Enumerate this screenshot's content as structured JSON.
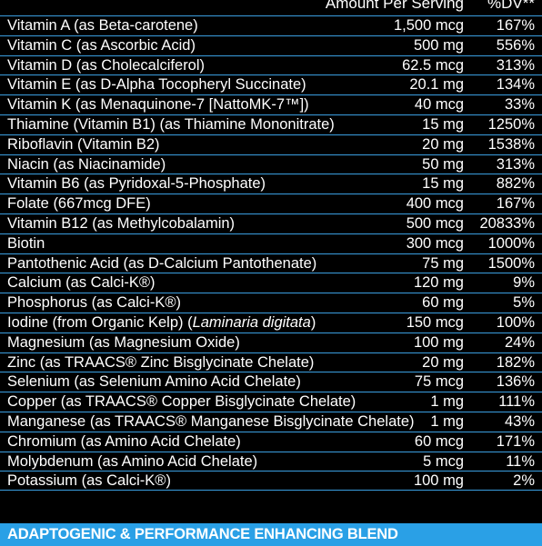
{
  "header": {
    "amount_label": "Amount Per Serving",
    "dv_label": "%DV**"
  },
  "rows": [
    {
      "name": "Vitamin A (as Beta-carotene)",
      "amount": "1,500 mcg",
      "dv": "167%"
    },
    {
      "name": "Vitamin C (as Ascorbic Acid)",
      "amount": "500 mg",
      "dv": "556%"
    },
    {
      "name": "Vitamin D (as Cholecalciferol)",
      "amount": "62.5 mcg",
      "dv": "313%"
    },
    {
      "name": "Vitamin E (as D-Alpha Tocopheryl Succinate)",
      "amount": "20.1 mg",
      "dv": "134%"
    },
    {
      "name": "Vitamin K (as Menaquinone-7 [NattoMK-7™])",
      "amount": "40 mcg",
      "dv": "33%"
    },
    {
      "name": "Thiamine (Vitamin B1) (as Thiamine Mononitrate)",
      "amount": "15 mg",
      "dv": "1250%"
    },
    {
      "name": "Riboflavin (Vitamin B2)",
      "amount": "20 mg",
      "dv": "1538%"
    },
    {
      "name": "Niacin (as Niacinamide)",
      "amount": "50 mg",
      "dv": "313%"
    },
    {
      "name": "Vitamin B6 (as Pyridoxal-5-Phosphate)",
      "amount": "15 mg",
      "dv": "882%"
    },
    {
      "name": "Folate (667mcg DFE)",
      "amount": "400 mcg",
      "dv": "167%"
    },
    {
      "name": "Vitamin B12 (as Methylcobalamin)",
      "amount": "500 mcg",
      "dv": "20833%"
    },
    {
      "name": "Biotin",
      "amount": "300 mcg",
      "dv": "1000%"
    },
    {
      "name": "Pantothenic Acid (as D-Calcium Pantothenate)",
      "amount": "75 mg",
      "dv": "1500%"
    },
    {
      "name": "Calcium (as Calci-K®)",
      "amount": "120 mg",
      "dv": "9%"
    },
    {
      "name": "Phosphorus (as Calci-K®)",
      "amount": "60 mg",
      "dv": "5%"
    },
    {
      "name": "Iodine (from Organic Kelp) (",
      "name_italic": "Laminaria digitata",
      "name_after": ")",
      "amount": "150 mcg",
      "dv": "100%"
    },
    {
      "name": "Magnesium (as Magnesium Oxide)",
      "amount": "100 mg",
      "dv": "24%"
    },
    {
      "name": "Zinc (as TRAACS® Zinc Bisglycinate Chelate)",
      "amount": "20 mg",
      "dv": "182%"
    },
    {
      "name": "Selenium (as Selenium Amino Acid Chelate)",
      "amount": "75 mcg",
      "dv": "136%"
    },
    {
      "name": "Copper (as TRAACS® Copper Bisglycinate Chelate)",
      "amount": "1 mg",
      "dv": "111%"
    },
    {
      "name": "Manganese (as TRAACS® Manganese Bisglycinate Chelate)",
      "amount": "1 mg",
      "dv": "43%"
    },
    {
      "name": "Chromium (as Amino Acid Chelate)",
      "amount": "60 mcg",
      "dv": "171%"
    },
    {
      "name": "Molybdenum (as Amino Acid Chelate)",
      "amount": "5 mcg",
      "dv": "11%"
    },
    {
      "name": "Potassium (as Calci-K®)",
      "amount": "100 mg",
      "dv": "2%"
    }
  ],
  "blend": {
    "title": "ADAPTOGENIC & PERFORMANCE ENHANCING BLEND"
  },
  "colors": {
    "background": "#000000",
    "rule_line": "#3a9ee0",
    "blend_bar": "#2aa0e6",
    "text": "#ffffff"
  }
}
